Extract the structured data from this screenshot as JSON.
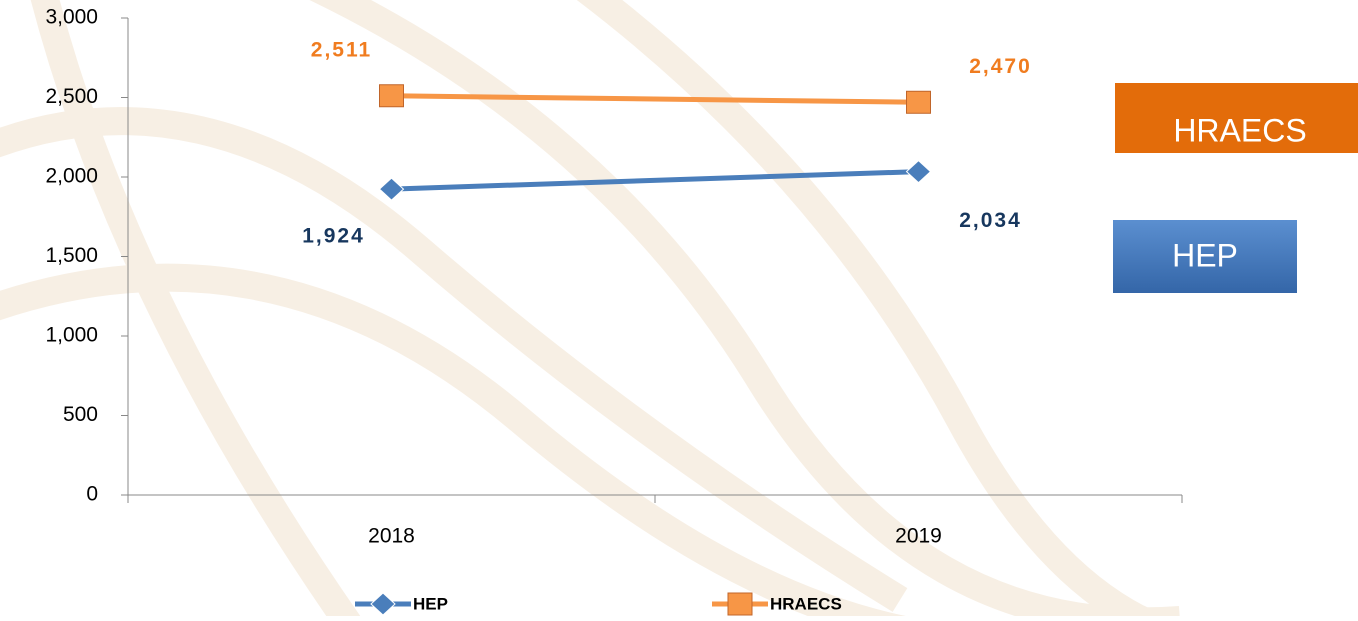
{
  "chart_data": {
    "type": "line",
    "categories": [
      "2018",
      "2019"
    ],
    "series": [
      {
        "name": "HEP",
        "color": "#4a7ebb",
        "label_color": "#17375e",
        "marker": "diamond",
        "values": [
          1924,
          2034
        ],
        "value_labels": [
          "1,924",
          "2,034"
        ]
      },
      {
        "name": "HRAECS",
        "color": "#f79646",
        "label_color": "#f07c1f",
        "marker": "square",
        "values": [
          2511,
          2470
        ],
        "value_labels": [
          "2,511",
          "2,470"
        ]
      }
    ],
    "ylim": [
      0,
      3000
    ],
    "yticks": [
      0,
      500,
      {
        "value": 1000,
        "label": "1,000"
      },
      {
        "value": 1500,
        "label": "1,500"
      },
      {
        "value": 2000,
        "label": "2,000"
      },
      {
        "value": 2500,
        "label": "2,500"
      },
      {
        "value": 3000,
        "label": "3,000"
      }
    ],
    "legend": "bottom",
    "grid": false
  }
}
